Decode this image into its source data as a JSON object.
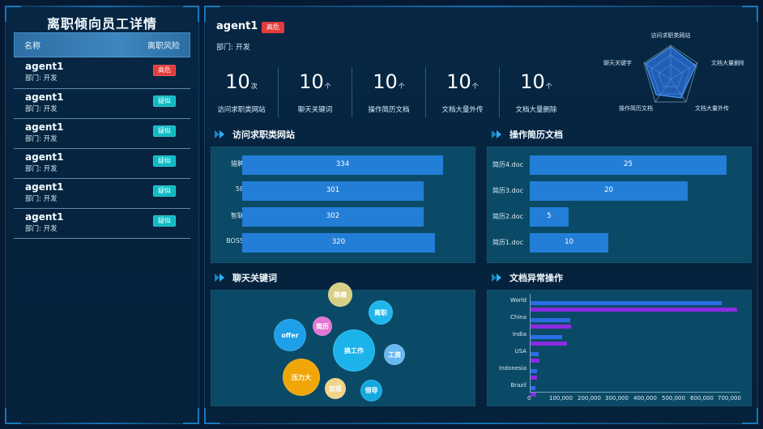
{
  "left_panel": {
    "title": "离职倾向员工详情",
    "table_header": {
      "col1": "名称",
      "col2": "离职风险"
    },
    "rows": [
      {
        "name": "agent1",
        "dept": "部门: 开发",
        "risk": "高危",
        "risk_color": "#e33b3b"
      },
      {
        "name": "agent1",
        "dept": "部门: 开发",
        "risk": "疑似",
        "risk_color": "#0fbac2"
      },
      {
        "name": "agent1",
        "dept": "部门: 开发",
        "risk": "疑似",
        "risk_color": "#0fbac2"
      },
      {
        "name": "agent1",
        "dept": "部门: 开发",
        "risk": "疑似",
        "risk_color": "#0fbac2"
      },
      {
        "name": "agent1",
        "dept": "部门: 开发",
        "risk": "疑似",
        "risk_color": "#0fbac2"
      },
      {
        "name": "agent1",
        "dept": "部门: 开发",
        "risk": "疑似",
        "risk_color": "#0fbac2"
      }
    ]
  },
  "top": {
    "name": "agent1",
    "badge": "高危",
    "dept": "部门: 开发",
    "stats": [
      {
        "value": "10",
        "unit": "次",
        "label": "访问求职类网站"
      },
      {
        "value": "10",
        "unit": "个",
        "label": "聊天关键词"
      },
      {
        "value": "10",
        "unit": "个",
        "label": "操作简历文档"
      },
      {
        "value": "10",
        "unit": "个",
        "label": "文档大量外传"
      },
      {
        "value": "10",
        "unit": "个",
        "label": "文档大量删除"
      }
    ],
    "radar_labels": [
      "访问求职类网站",
      "文档大量删除",
      "文档大量外传",
      "操作简历文档",
      "聊天关键字"
    ],
    "radar_color": "#2f7df2"
  },
  "sections": {
    "job_sites": {
      "title": "访问求职类网站"
    },
    "resume_docs": {
      "title": "操作简历文档"
    },
    "chat_keywords": {
      "title": "聊天关键词"
    },
    "doc_anomaly": {
      "title": "文档异常操作"
    }
  },
  "chart_data": [
    {
      "type": "bar",
      "title": "访问求职类网站",
      "categories": [
        "猎聘",
        "58",
        "智联",
        "BOSS"
      ],
      "values": [
        334,
        301,
        302,
        320
      ],
      "xlim": [
        0,
        400
      ]
    },
    {
      "type": "bar",
      "title": "操作简历文档",
      "categories": [
        "简历4.doc",
        "简历3.doc",
        "简历2.doc",
        "简历1.doc"
      ],
      "values": [
        25,
        20,
        5,
        10
      ],
      "xlim": [
        0,
        30
      ]
    },
    {
      "type": "bubble",
      "title": "聊天关键词",
      "items": [
        {
          "label": "跳槽",
          "value": 28,
          "color": "#d8cf87"
        },
        {
          "label": "离职",
          "value": 26,
          "color": "#1eb7ec"
        },
        {
          "label": "offer",
          "value": 40,
          "color": "#1ea0e8"
        },
        {
          "label": "简历",
          "value": 20,
          "color": "#e275d5"
        },
        {
          "label": "换工作",
          "value": 58,
          "color": "#1bb3ea"
        },
        {
          "label": "工资",
          "value": 24,
          "color": "#68b8f0"
        },
        {
          "label": "压力大",
          "value": 46,
          "color": "#f0a609"
        },
        {
          "label": "加班",
          "value": 24,
          "color": "#f1d38a"
        },
        {
          "label": "领导",
          "value": 27,
          "color": "#13a9df"
        }
      ]
    },
    {
      "type": "bar",
      "title": "文档异常操作",
      "categories": [
        "World",
        "China",
        "India",
        "USA",
        "Indonesia",
        "Brazil"
      ],
      "series": [
        {
          "values": [
            630000,
            140000,
            110000,
            30000,
            25000,
            20000
          ],
          "color": "#2c6ee6"
        },
        {
          "values": [
            680000,
            145000,
            125000,
            34000,
            27000,
            22000
          ],
          "color": "#8a2be2"
        }
      ],
      "xlim": [
        0,
        700000
      ],
      "xticks": [
        "0",
        "100,000",
        "200,000",
        "300,000",
        "400,000",
        "500,000",
        "600,000",
        "700,000"
      ]
    }
  ]
}
